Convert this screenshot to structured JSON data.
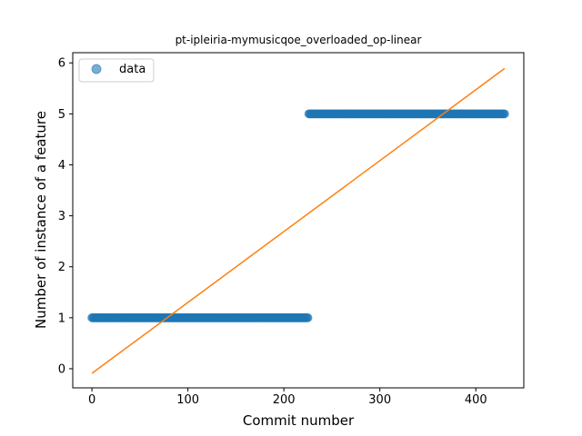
{
  "chart_data": {
    "type": "scatter",
    "title": "pt-ipleiria-mymusicqoe_overloaded_op-linear",
    "xlabel": "Commit number",
    "ylabel": "Number of instance of a feature",
    "xlim": [
      -20,
      450
    ],
    "ylim": [
      -0.375,
      6.2
    ],
    "x_ticks": [
      0,
      100,
      200,
      300,
      400
    ],
    "y_ticks": [
      0,
      1,
      2,
      3,
      4,
      5,
      6
    ],
    "grid": false,
    "legend": {
      "position": "top-left",
      "entries": [
        "data"
      ]
    },
    "series": [
      {
        "name": "data",
        "kind": "scatter",
        "color": "#1f77b4",
        "segments": [
          {
            "x_start": 0,
            "x_end": 225,
            "y": 1
          },
          {
            "x_start": 226,
            "x_end": 430,
            "y": 5
          }
        ]
      },
      {
        "kind": "line",
        "color": "#ff7f0e",
        "x": [
          0,
          430
        ],
        "y": [
          -0.09,
          5.89
        ]
      }
    ]
  }
}
